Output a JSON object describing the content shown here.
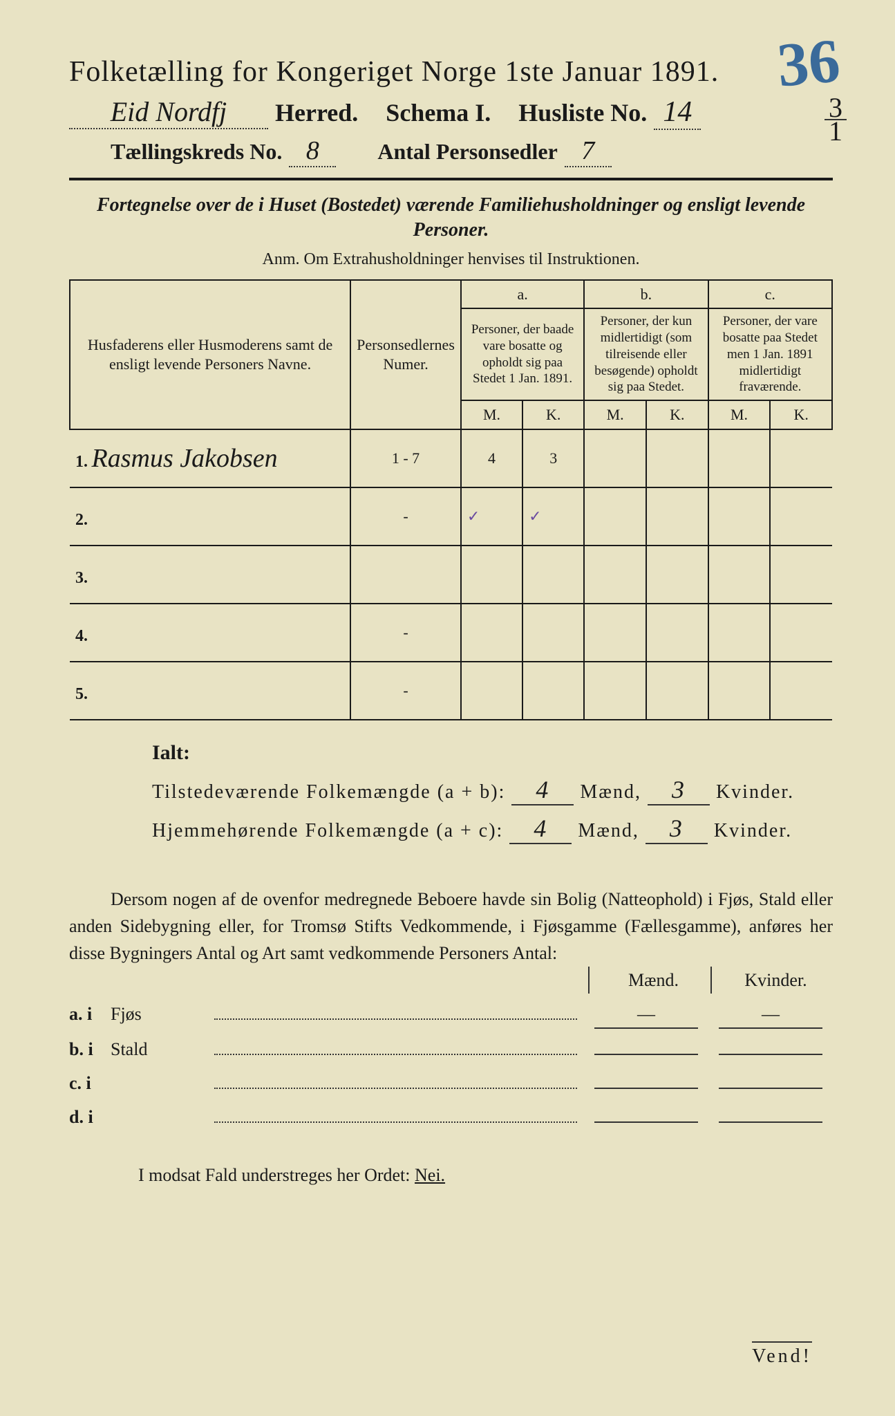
{
  "corner_number": "36",
  "date_fraction": {
    "num": "3",
    "den": "1"
  },
  "title": "Folketælling for Kongeriget Norge 1ste Januar 1891.",
  "header": {
    "herred_value": "Eid Nordfj",
    "herred_label": "Herred.",
    "schema_label": "Schema I.",
    "husliste_label": "Husliste No.",
    "husliste_value": "14",
    "kreds_label": "Tællingskreds No.",
    "kreds_value": "8",
    "antal_label": "Antal Personsedler",
    "antal_value": "7"
  },
  "subtitle": "Fortegnelse over de i Huset (Bostedet) værende Familiehusholdninger og ensligt levende Personer.",
  "anm": "Anm.  Om Extrahusholdninger henvises til Instruktionen.",
  "table": {
    "col1": "Husfaderens eller Husmoderens samt de ensligt levende Personers Navne.",
    "col2": "Personsedlernes Numer.",
    "col_a_label": "a.",
    "col_a": "Personer, der baade vare bosatte og opholdt sig paa Stedet 1 Jan. 1891.",
    "col_b_label": "b.",
    "col_b": "Personer, der kun midlertidigt (som tilreisende eller besøgende) opholdt sig paa Stedet.",
    "col_c_label": "c.",
    "col_c": "Personer, der vare bosatte paa Stedet men 1 Jan. 1891 midlertidigt fraværende.",
    "m": "M.",
    "k": "K.",
    "rows": [
      {
        "n": "1.",
        "name": "Rasmus Jakobsen",
        "num": "1 - 7",
        "am": "4",
        "ak": "3",
        "bm": "",
        "bk": "",
        "cm": "",
        "ck": ""
      },
      {
        "n": "2.",
        "name": "",
        "num": "-",
        "am": "✓",
        "ak": "✓",
        "bm": "",
        "bk": "",
        "cm": "",
        "ck": ""
      },
      {
        "n": "3.",
        "name": "",
        "num": "",
        "am": "",
        "ak": "",
        "bm": "",
        "bk": "",
        "cm": "",
        "ck": ""
      },
      {
        "n": "4.",
        "name": "",
        "num": "-",
        "am": "",
        "ak": "",
        "bm": "",
        "bk": "",
        "cm": "",
        "ck": ""
      },
      {
        "n": "5.",
        "name": "",
        "num": "-",
        "am": "",
        "ak": "",
        "bm": "",
        "bk": "",
        "cm": "",
        "ck": ""
      }
    ]
  },
  "ialt": {
    "title": "Ialt:",
    "line1_label": "Tilstedeværende Folkemængde (a + b):",
    "line1_m": "4",
    "line1_k": "3",
    "line2_label": "Hjemmehørende Folkemængde (a + c):",
    "line2_m": "4",
    "line2_k": "3",
    "maend": "Mænd,",
    "kvinder": "Kvinder."
  },
  "bolig": {
    "text": "Dersom nogen af de ovenfor medregnede Beboere havde sin Bolig (Natteophold) i Fjøs, Stald eller anden Sidebygning eller, for Tromsø Stifts Vedkommende, i Fjøsgamme (Fællesgamme), anføres her disse Bygningers Antal og Art samt vedkommende Personers Antal:",
    "maend": "Mænd.",
    "kvinder": "Kvinder.",
    "rows": [
      {
        "label": "a. i",
        "type": "Fjøs",
        "m": "—",
        "k": "—"
      },
      {
        "label": "b. i",
        "type": "Stald",
        "m": "",
        "k": ""
      },
      {
        "label": "c. i",
        "type": "",
        "m": "",
        "k": ""
      },
      {
        "label": "d. i",
        "type": "",
        "m": "",
        "k": ""
      }
    ]
  },
  "nei": {
    "text": "I modsat Fald understreges her Ordet:",
    "word": "Nei."
  },
  "vend": "Vend!"
}
